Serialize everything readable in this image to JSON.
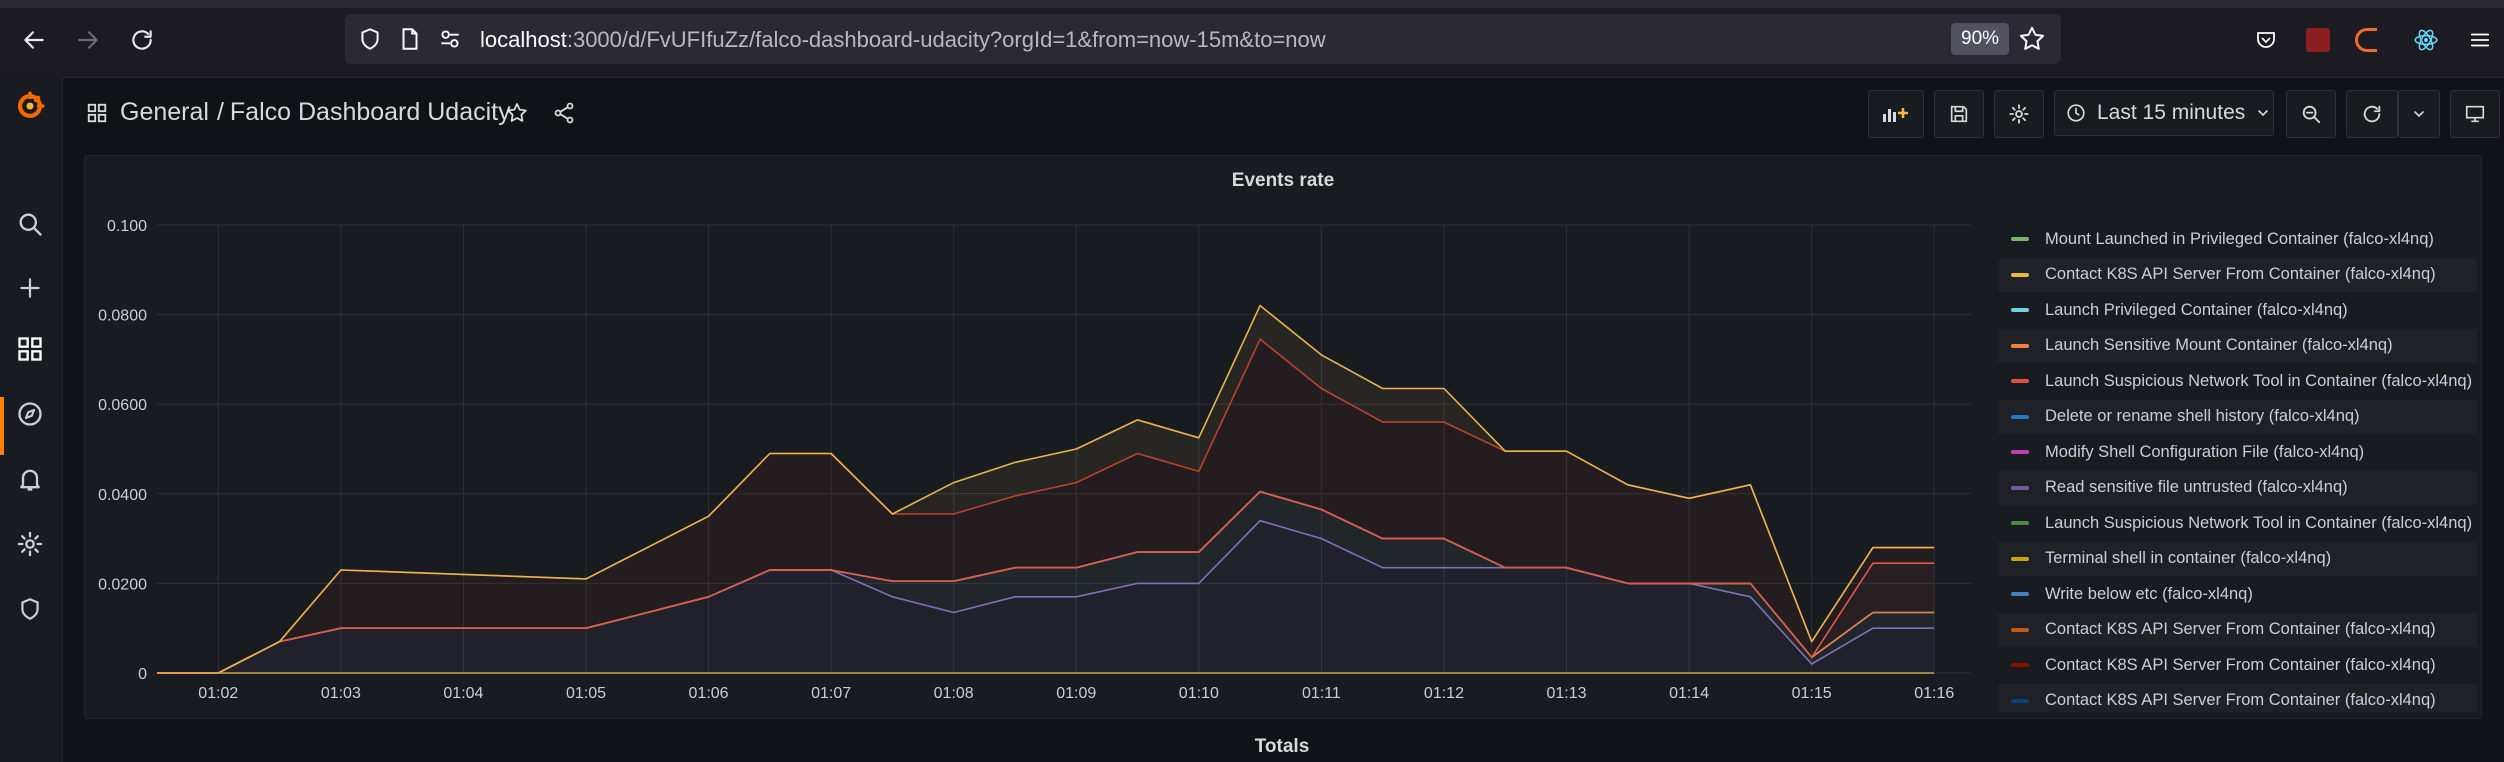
{
  "browser": {
    "url_host": "localhost",
    "url_rest": ":3000/d/FvUFIfuZz/falco-dashboard-udacity?orgId=1&from=now-15m&to=now",
    "zoom": "90%"
  },
  "header": {
    "breadcrumb_root": "General",
    "breadcrumb_sep": "/",
    "dashboard_title": "Falco Dashboard Udacity",
    "time_range": "Last 15 minutes"
  },
  "panel": {
    "title": "Events rate"
  },
  "totals_title": "Totals",
  "chart_data": {
    "type": "area",
    "title": "Events rate",
    "stacked": true,
    "xlabel": "",
    "ylabel": "",
    "x_ticks": [
      "01:02",
      "01:03",
      "01:04",
      "01:05",
      "01:06",
      "01:07",
      "01:08",
      "01:09",
      "01:10",
      "01:11",
      "01:12",
      "01:13",
      "01:14",
      "01:15",
      "01:16"
    ],
    "y_ticks": [
      "0",
      "0.0200",
      "0.0400",
      "0.0600",
      "0.0800",
      "0.100"
    ],
    "ylim": [
      0,
      0.1
    ],
    "x": [
      "01:01.5",
      "01:02",
      "01:02.5",
      "01:03",
      "01:04",
      "01:05",
      "01:06",
      "01:06.5",
      "01:07",
      "01:07.5",
      "01:08",
      "01:08.5",
      "01:09",
      "01:09.5",
      "01:10",
      "01:10.5",
      "01:11",
      "01:11.5",
      "01:12",
      "01:12.5",
      "01:13",
      "01:13.5",
      "01:14",
      "01:14.5",
      "01:15",
      "01:15.5",
      "01:16"
    ],
    "series": [
      {
        "name": "Terminal shell in container (falco-xl4nq)",
        "color": "#c8ad3f",
        "values": [
          0,
          0,
          0,
          0,
          0,
          0,
          0,
          0,
          0,
          0,
          0,
          0,
          0,
          0,
          0,
          0,
          0,
          0,
          0,
          0,
          0,
          0,
          0,
          0,
          0,
          0,
          0
        ]
      },
      {
        "name": "Read sensitive file untrusted (falco-xl4nq)",
        "color": "#806eb7",
        "values": [
          0,
          0,
          0.007,
          0.01,
          0.01,
          0.01,
          0.017,
          0.023,
          0.023,
          0.017,
          0.0135,
          0.017,
          0.017,
          0.02,
          0.02,
          0.034,
          0.03,
          0.0235,
          0.0235,
          0.0235,
          0.0235,
          0.02,
          0.02,
          0.017,
          0.002,
          0.01,
          0.01
        ]
      },
      {
        "name": "Launch Privileged Container (falco-xl4nq)",
        "color": "#8ab8c4",
        "values": [
          0,
          0,
          0,
          0,
          0,
          0,
          0,
          0,
          0,
          0.0035,
          0.007,
          0.0065,
          0.0065,
          0.007,
          0.007,
          0.0065,
          0.0065,
          0.0065,
          0.0065,
          0,
          0,
          0,
          0,
          0.003,
          0.0015,
          0.0035,
          0.0035
        ]
      },
      {
        "name": "Launch Sensitive Mount Container (falco-xl4nq)",
        "color": "#e2804b",
        "values": [
          0,
          0,
          0,
          0,
          0,
          0,
          0,
          0,
          0,
          0,
          0,
          0,
          0,
          0,
          0,
          0,
          0,
          0,
          0,
          0,
          0,
          0,
          0,
          0,
          0,
          0,
          0
        ]
      },
      {
        "name": "Launch Suspicious Network Tool in Container (falco-xl4nq)",
        "color": "#e05a4d",
        "values": [
          0,
          0,
          0,
          0,
          0,
          0,
          0,
          0,
          0,
          0,
          0,
          0,
          0,
          0,
          0,
          0,
          0,
          0,
          0,
          0,
          0,
          0,
          0,
          0,
          0,
          0.011,
          0.011
        ]
      },
      {
        "name": "Contact K8S API Server From Container (falco-xl4nq)",
        "color": "#b73e32",
        "values": [
          0,
          0,
          0,
          0.013,
          0.012,
          0.011,
          0.018,
          0.026,
          0.026,
          0.015,
          0.015,
          0.016,
          0.019,
          0.022,
          0.018,
          0.034,
          0.027,
          0.026,
          0.026,
          0.026,
          0.026,
          0.022,
          0.019,
          0.022,
          0.0035,
          0.0035,
          0.0035
        ]
      },
      {
        "name": "Contact K8S API Server From Container (falco-xl4nq)",
        "color": "#e8b44c",
        "values": [
          0,
          0,
          0,
          0,
          0,
          0,
          0,
          0,
          0,
          0,
          0.007,
          0.0075,
          0.0075,
          0.0075,
          0.0075,
          0.0075,
          0.0075,
          0.0075,
          0.0075,
          0,
          0,
          0,
          0,
          0,
          0,
          0,
          0
        ]
      }
    ],
    "legend": [
      {
        "label": "Mount Launched in Privileged Container (falco-xl4nq)",
        "color": "#7eb26d"
      },
      {
        "label": "Contact K8S API Server From Container (falco-xl4nq)",
        "color": "#eab839"
      },
      {
        "label": "Launch Privileged Container (falco-xl4nq)",
        "color": "#6ed0e0"
      },
      {
        "label": "Launch Sensitive Mount Container (falco-xl4nq)",
        "color": "#ef843c"
      },
      {
        "label": "Launch Suspicious Network Tool in Container (falco-xl4nq)",
        "color": "#e24d42"
      },
      {
        "label": "Delete or rename shell history (falco-xl4nq)",
        "color": "#1f78c1"
      },
      {
        "label": "Modify Shell Configuration File (falco-xl4nq)",
        "color": "#ba43a9"
      },
      {
        "label": "Read sensitive file untrusted (falco-xl4nq)",
        "color": "#705da0"
      },
      {
        "label": "Launch Suspicious Network Tool in Container (falco-xl4nq)",
        "color": "#508642"
      },
      {
        "label": "Terminal shell in container (falco-xl4nq)",
        "color": "#cca300"
      },
      {
        "label": "Write below etc (falco-xl4nq)",
        "color": "#447ebc"
      },
      {
        "label": "Contact K8S API Server From Container (falco-xl4nq)",
        "color": "#c15c17"
      },
      {
        "label": "Contact K8S API Server From Container (falco-xl4nq)",
        "color": "#890f02"
      },
      {
        "label": "Contact K8S API Server From Container (falco-xl4nq)",
        "color": "#0a437c"
      }
    ],
    "legend_placement": "right",
    "grid": true
  }
}
